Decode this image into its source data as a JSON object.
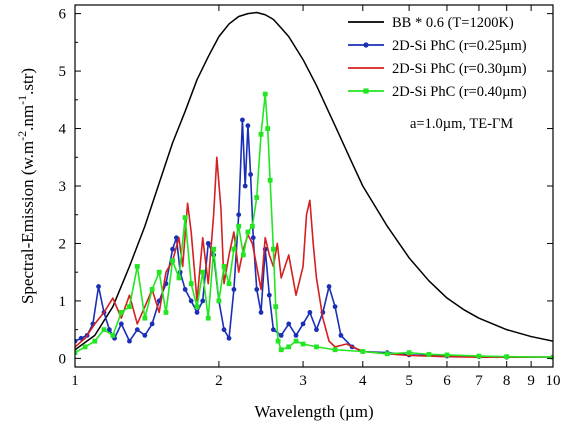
{
  "chart_data": {
    "type": "line",
    "xlabel": "Wavelength (µm)",
    "ylabel": "Spectral-Emission (w.m-2.nm-1.str)",
    "ylabel_parts": {
      "base1": "Spectral-Emission (w.m",
      "sup1": "-2",
      "base2": ".nm",
      "sup2": "-1",
      "base3": ".str)"
    },
    "x_scale": "log",
    "xlim": [
      1,
      10
    ],
    "ylim": [
      -0.15,
      6.15
    ],
    "x_ticks": [
      1,
      2,
      3,
      4,
      5,
      6,
      7,
      8,
      9,
      10
    ],
    "x_tick_labels": [
      "1",
      "2",
      "3",
      "4",
      "5",
      "6",
      "7",
      "8",
      "9",
      "10"
    ],
    "y_ticks": [
      0,
      1,
      2,
      3,
      4,
      5,
      6
    ],
    "y_tick_labels": [
      "0",
      "1",
      "2",
      "3",
      "4",
      "5",
      "6"
    ],
    "grid": false,
    "legend_position": "top-right",
    "annotation": "a=1.0µm, TE-ΓM",
    "series": [
      {
        "name": "BB * 0.6 (T=1200K)",
        "color": "#000000",
        "marker": "none",
        "x": [
          1.0,
          1.1,
          1.2,
          1.3,
          1.4,
          1.5,
          1.6,
          1.7,
          1.8,
          1.9,
          2.0,
          2.1,
          2.2,
          2.3,
          2.4,
          2.5,
          2.6,
          2.7,
          2.8,
          3.0,
          3.2,
          3.5,
          3.8,
          4.0,
          4.5,
          5.0,
          5.5,
          6.0,
          6.5,
          7.0,
          8.0,
          9.0,
          10.0
        ],
        "y": [
          0.15,
          0.4,
          0.9,
          1.6,
          2.3,
          3.05,
          3.75,
          4.3,
          4.85,
          5.25,
          5.6,
          5.82,
          5.95,
          6.0,
          6.02,
          5.98,
          5.9,
          5.75,
          5.6,
          5.2,
          4.75,
          4.05,
          3.4,
          3.0,
          2.3,
          1.75,
          1.35,
          1.05,
          0.85,
          0.7,
          0.5,
          0.38,
          0.3
        ]
      },
      {
        "name": "2D-Si PhC (r=0.25µm)",
        "color": "#1a2fb5",
        "marker": "circle",
        "x": [
          1.0,
          1.03,
          1.06,
          1.09,
          1.12,
          1.15,
          1.18,
          1.21,
          1.25,
          1.3,
          1.35,
          1.4,
          1.45,
          1.5,
          1.55,
          1.6,
          1.63,
          1.66,
          1.7,
          1.75,
          1.8,
          1.85,
          1.9,
          1.95,
          2.0,
          2.05,
          2.1,
          2.15,
          2.2,
          2.24,
          2.27,
          2.3,
          2.33,
          2.36,
          2.4,
          2.45,
          2.5,
          2.55,
          2.6,
          2.7,
          2.8,
          2.9,
          3.0,
          3.1,
          3.2,
          3.3,
          3.4,
          3.5,
          3.6,
          3.8,
          4.0,
          4.5,
          5.0,
          6.0,
          7.0,
          8.0,
          10.0
        ],
        "y": [
          0.3,
          0.35,
          0.4,
          0.6,
          1.25,
          0.8,
          0.5,
          0.35,
          0.6,
          0.3,
          0.5,
          0.4,
          0.6,
          1.0,
          1.3,
          1.9,
          2.1,
          1.5,
          1.2,
          1.0,
          0.8,
          1.0,
          2.0,
          1.8,
          1.0,
          0.5,
          0.35,
          1.2,
          2.5,
          4.15,
          3.0,
          4.05,
          3.2,
          2.1,
          1.2,
          0.8,
          1.9,
          1.1,
          0.5,
          0.4,
          0.6,
          0.4,
          0.6,
          0.8,
          0.5,
          0.8,
          1.25,
          0.9,
          0.4,
          0.2,
          0.12,
          0.1,
          0.06,
          0.04,
          0.03,
          0.02,
          0.02
        ]
      },
      {
        "name": "2D-Si PhC (r=0.30µm)",
        "color": "#d42020",
        "marker": "none",
        "x": [
          1.0,
          1.05,
          1.1,
          1.15,
          1.2,
          1.25,
          1.3,
          1.35,
          1.4,
          1.45,
          1.5,
          1.55,
          1.6,
          1.65,
          1.68,
          1.72,
          1.75,
          1.8,
          1.85,
          1.9,
          1.95,
          1.98,
          2.02,
          2.05,
          2.1,
          2.15,
          2.2,
          2.25,
          2.3,
          2.35,
          2.4,
          2.45,
          2.5,
          2.55,
          2.6,
          2.65,
          2.7,
          2.8,
          2.9,
          3.0,
          3.05,
          3.1,
          3.15,
          3.2,
          3.3,
          3.4,
          3.5,
          3.7,
          4.0,
          4.5,
          5.0,
          6.0,
          7.0,
          8.0,
          10.0
        ],
        "y": [
          0.2,
          0.35,
          0.6,
          0.8,
          1.05,
          0.7,
          1.1,
          0.6,
          0.9,
          1.2,
          0.8,
          1.5,
          1.7,
          2.1,
          1.6,
          2.7,
          2.2,
          1.0,
          2.1,
          1.3,
          2.5,
          3.5,
          2.6,
          1.3,
          1.8,
          2.2,
          1.5,
          1.9,
          2.15,
          2.0,
          1.6,
          1.2,
          2.1,
          1.8,
          1.6,
          2.0,
          1.4,
          1.8,
          1.1,
          1.6,
          2.5,
          2.75,
          2.0,
          1.4,
          0.7,
          0.3,
          0.2,
          0.25,
          0.12,
          0.08,
          0.05,
          0.03,
          0.02,
          0.02,
          0.02
        ]
      },
      {
        "name": "2D-Si PhC (r=0.40µm)",
        "color": "#22e622",
        "marker": "square",
        "x": [
          1.0,
          1.05,
          1.1,
          1.15,
          1.2,
          1.25,
          1.3,
          1.35,
          1.4,
          1.45,
          1.5,
          1.55,
          1.6,
          1.65,
          1.7,
          1.75,
          1.8,
          1.85,
          1.9,
          1.95,
          2.0,
          2.05,
          2.1,
          2.15,
          2.2,
          2.25,
          2.3,
          2.35,
          2.4,
          2.45,
          2.5,
          2.53,
          2.56,
          2.6,
          2.63,
          2.66,
          2.7,
          2.8,
          2.9,
          3.0,
          3.2,
          3.5,
          4.0,
          4.5,
          5.0,
          5.5,
          6.0,
          7.0,
          8.0,
          10.0
        ],
        "y": [
          0.1,
          0.2,
          0.3,
          0.5,
          0.4,
          0.8,
          0.9,
          1.6,
          0.7,
          1.2,
          1.5,
          0.8,
          1.7,
          1.4,
          2.45,
          1.3,
          0.9,
          1.5,
          0.7,
          1.9,
          1.0,
          1.6,
          1.3,
          1.9,
          2.3,
          1.8,
          2.2,
          2.3,
          2.8,
          3.9,
          4.6,
          4.0,
          3.1,
          1.9,
          0.9,
          0.3,
          0.15,
          0.2,
          0.3,
          0.25,
          0.2,
          0.15,
          0.12,
          0.08,
          0.1,
          0.07,
          0.06,
          0.04,
          0.03,
          0.02
        ]
      }
    ]
  }
}
